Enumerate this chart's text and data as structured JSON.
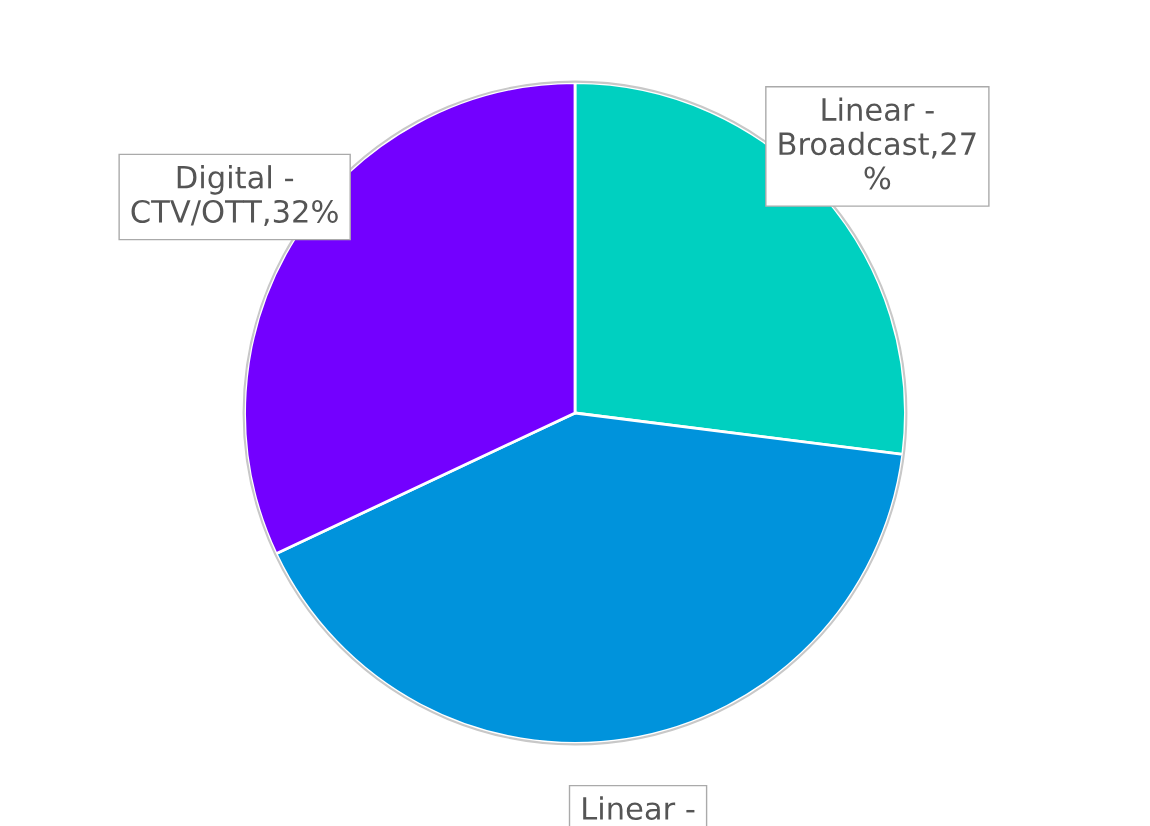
{
  "chart_data": {
    "type": "pie",
    "categories": [
      "Linear -\nBroadcast,27\n%",
      "Linear -",
      "Digital -\nCTV/OTT,32%"
    ],
    "values": [
      27,
      41,
      32
    ],
    "colors": [
      "#00d0c0",
      "#0093dc",
      "#7300ff"
    ]
  }
}
